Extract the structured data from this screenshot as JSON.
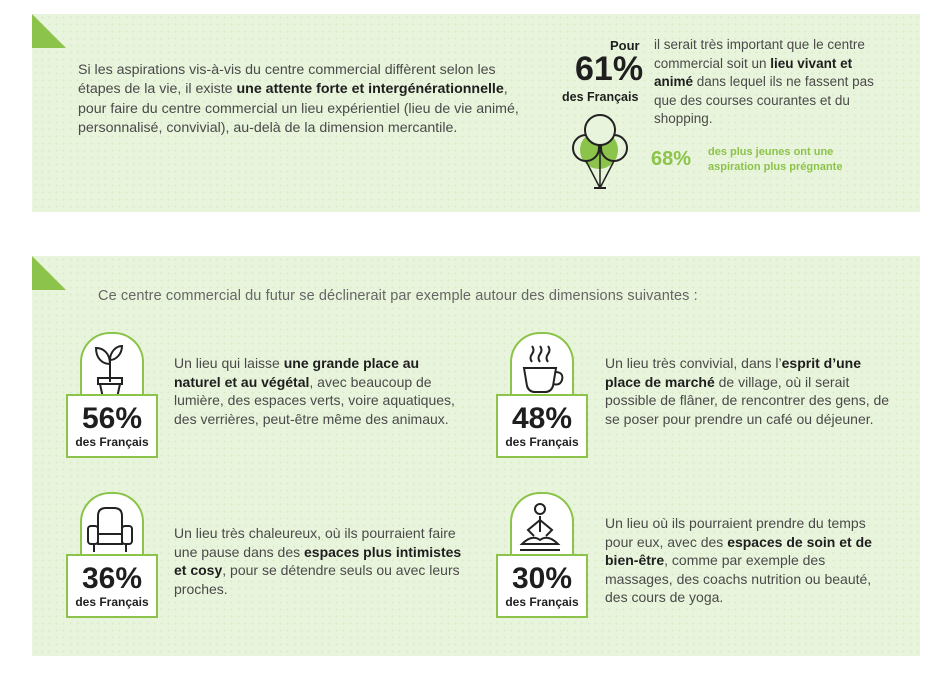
{
  "intro": {
    "p1": "Si les aspirations vis-à-vis du centre commercial diffèrent selon les étapes de la vie, il existe ",
    "b1": "une attente forte et intergénérationnelle",
    "p2": ", pour faire du centre commercial un lieu expérientiel (lieu de vie animé, personnalisé, convivial), au-delà de la dimension mercantile."
  },
  "highlight": {
    "pour": "Pour",
    "pct": "61%",
    "who": "des Français",
    "t1": "il serait très important que le centre commercial soit un ",
    "b1": "lieu vivant et animé",
    "t2": " dans lequel ils ne fassent pas que des courses courantes et du shopping.",
    "young_pct": "68%",
    "young_text": "des plus jeunes ont une aspiration plus prégnante"
  },
  "dimensions": {
    "title": "Ce centre commercial du futur se déclinerait par exemple autour des dimensions suivantes :",
    "items": [
      {
        "pct": "56%",
        "who": "des Français",
        "icon": "plant-icon",
        "t1": "Un lieu qui laisse ",
        "b1": "une grande place au naturel et au végétal",
        "t2": ", avec beaucoup de lumière, des espaces verts, voire aquatiques, des verrières, peut-être même des animaux."
      },
      {
        "pct": "48%",
        "who": "des Français",
        "icon": "coffee-cup-icon",
        "t1": "Un lieu très convivial, dans l’",
        "b1": "esprit d’une place de marché",
        "t2": " de village, où il serait possible de flâner, de rencontrer des gens, de se poser pour prendre un café ou déjeuner."
      },
      {
        "pct": "36%",
        "who": "des Français",
        "icon": "armchair-icon",
        "t1": "Un lieu très chaleureux, où ils pourraient faire une pause dans des ",
        "b1": "espaces plus intimistes et cosy",
        "t2": ", pour se détendre seuls ou avec leurs proches."
      },
      {
        "pct": "30%",
        "who": "des Français",
        "icon": "meditation-icon",
        "t1": "Un lieu où ils pourraient prendre du temps pour eux, avec des ",
        "b1": "espaces de soin et de bien-être",
        "t2": ", comme par exemple des massages, des coachs nutrition ou beauté, des cours de yoga."
      }
    ]
  },
  "colors": {
    "accent": "#8cc34a",
    "panel": "#e9f4dc"
  }
}
